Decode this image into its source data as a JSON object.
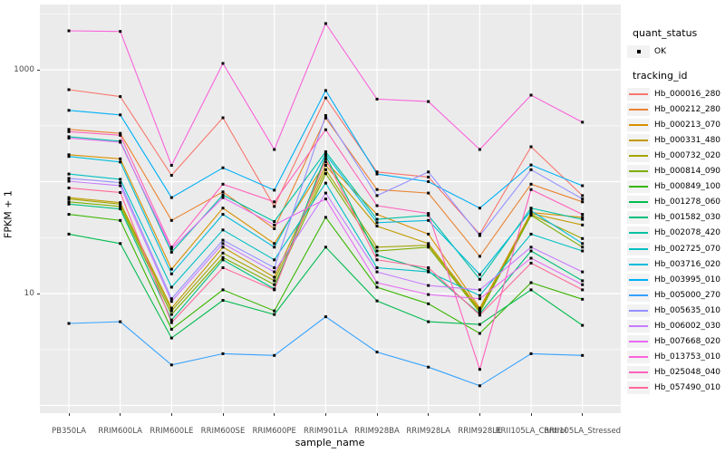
{
  "axes": {
    "y_title": "FPKM + 1",
    "x_title": "sample_name",
    "y_ticks": [
      {
        "label": "1000",
        "value": 1000
      },
      {
        "label": "10",
        "value": 10
      }
    ]
  },
  "legend": {
    "quant_title": "quant_status",
    "quant_items": [
      {
        "label": "OK",
        "shape": "black-square-point"
      }
    ],
    "tracking_title": "tracking_id"
  },
  "colors": {
    "panel_background": "#EBEBEB",
    "grid": "#FFFFFF",
    "point": "#000000",
    "tick_text": "#4D4D4D",
    "legend_key_background": "#F2F2F2"
  },
  "chart_data": {
    "type": "line",
    "title": "",
    "xlabel": "sample_name",
    "ylabel": "FPKM + 1",
    "yscale": "log10",
    "ylim": [
      0.85,
      3800
    ],
    "grid": "on",
    "legend_position": "right",
    "marker": "small-black-square",
    "major_grid_values": [
      1,
      10,
      100,
      1000
    ],
    "minor_grid_values": [
      3.16,
      31.6,
      316,
      3162
    ],
    "categories": [
      "PB350LA",
      "RRIM600LA",
      "RRIM600LE",
      "RRIM600SE",
      "RRIM600PE",
      "RRIM901LA",
      "RRIM928BA",
      "RRIM928LA",
      "RRIM928LE",
      "RRII105LA_Control",
      "RRII105LA_Stressed"
    ],
    "series": [
      {
        "name": "Hb_000016_280",
        "color": "#F8766D",
        "values": [
          664,
          576,
          114,
          372,
          60,
          560,
          122,
          110,
          34,
          205,
          75
        ]
      },
      {
        "name": "Hb_000212_280",
        "color": "#EA8331",
        "values": [
          293,
          270,
          45,
          81,
          38,
          370,
          85,
          79,
          21.5,
          95,
          66
        ]
      },
      {
        "name": "Hb_000213_070",
        "color": "#D89000",
        "values": [
          174,
          160,
          16.5,
          58,
          28,
          150,
          51,
          34,
          7.4,
          53,
          48
        ]
      },
      {
        "name": "Hb_000331_480",
        "color": "#C09B00",
        "values": [
          72,
          65,
          7.4,
          26,
          14,
          140,
          40,
          28,
          7.2,
          52,
          41
        ]
      },
      {
        "name": "Hb_000732_020",
        "color": "#A3A500",
        "values": [
          70,
          63,
          7.0,
          23,
          13,
          128,
          26,
          27,
          7.0,
          51,
          31
        ]
      },
      {
        "name": "Hb_000814_090",
        "color": "#7CAE00",
        "values": [
          66,
          60,
          6.5,
          21,
          12,
          118,
          24,
          26,
          6.8,
          50,
          26
        ]
      },
      {
        "name": "Hb_000849_100",
        "color": "#39B600",
        "values": [
          51,
          45,
          4.8,
          10.8,
          7.0,
          48,
          11.4,
          8.1,
          4.4,
          12.5,
          8.9
        ]
      },
      {
        "name": "Hb_001278_060",
        "color": "#00BB4E",
        "values": [
          34,
          28,
          4.0,
          8.7,
          6.5,
          26,
          8.6,
          5.6,
          5.3,
          10.8,
          5.2
        ]
      },
      {
        "name": "Hb_001582_030",
        "color": "#00BF7D",
        "values": [
          63,
          57,
          5.8,
          20,
          11,
          170,
          22,
          16,
          6.6,
          24,
          13
        ]
      },
      {
        "name": "Hb_002078_420",
        "color": "#00C1A3",
        "values": [
          252,
          230,
          23.4,
          76,
          44,
          185,
          46,
          50,
          13.4,
          58,
          46
        ]
      },
      {
        "name": "Hb_002725_070",
        "color": "#00BFC4",
        "values": [
          117,
          105,
          11.4,
          37,
          20,
          97,
          17,
          15.6,
          9.6,
          34,
          24
        ]
      },
      {
        "name": "Hb_003716_020",
        "color": "#00BBDA",
        "values": [
          168,
          150,
          15,
          51,
          26,
          176,
          43,
          45,
          14.8,
          55,
          28
        ]
      },
      {
        "name": "Hb_003995_010",
        "color": "#00B0F6",
        "values": [
          434,
          395,
          72,
          133,
          84,
          652,
          117,
          100,
          58,
          141,
          92
        ]
      },
      {
        "name": "Hb_005000_270",
        "color": "#35A2FF",
        "values": [
          5.4,
          5.6,
          2.3,
          2.9,
          2.8,
          6.2,
          3.0,
          2.2,
          1.5,
          2.9,
          2.8
        ]
      },
      {
        "name": "Hb_005635_010",
        "color": "#9590FF",
        "values": [
          107,
          98,
          9.0,
          30,
          17,
          390,
          75,
          122,
          33,
          128,
          70
        ]
      },
      {
        "name": "Hb_006002_030",
        "color": "#C77CFF",
        "values": [
          101,
          92,
          8.5,
          28,
          15.6,
          79,
          15.6,
          11.8,
          10.8,
          26,
          15.6
        ]
      },
      {
        "name": "Hb_007668_020",
        "color": "#E76BF3",
        "values": [
          245,
          225,
          25,
          72,
          41,
          70,
          12.5,
          9.8,
          9.0,
          20.7,
          12
        ]
      },
      {
        "name": "Hb_013753_010",
        "color": "#FA62DB",
        "values": [
          2230,
          2200,
          140,
          1140,
          194,
          2590,
          547,
          520,
          194,
          593,
          340
        ]
      },
      {
        "name": "Hb_025048_040",
        "color": "#FF62BC",
        "values": [
          280,
          260,
          26,
          95,
          66,
          291,
          61,
          52,
          2.1,
          85,
          51
        ]
      },
      {
        "name": "Hb_057490_010",
        "color": "#FF6A98",
        "values": [
          88,
          80,
          5.5,
          17,
          10.8,
          160,
          20,
          17,
          6.4,
          18.7,
          10.8
        ]
      }
    ]
  }
}
